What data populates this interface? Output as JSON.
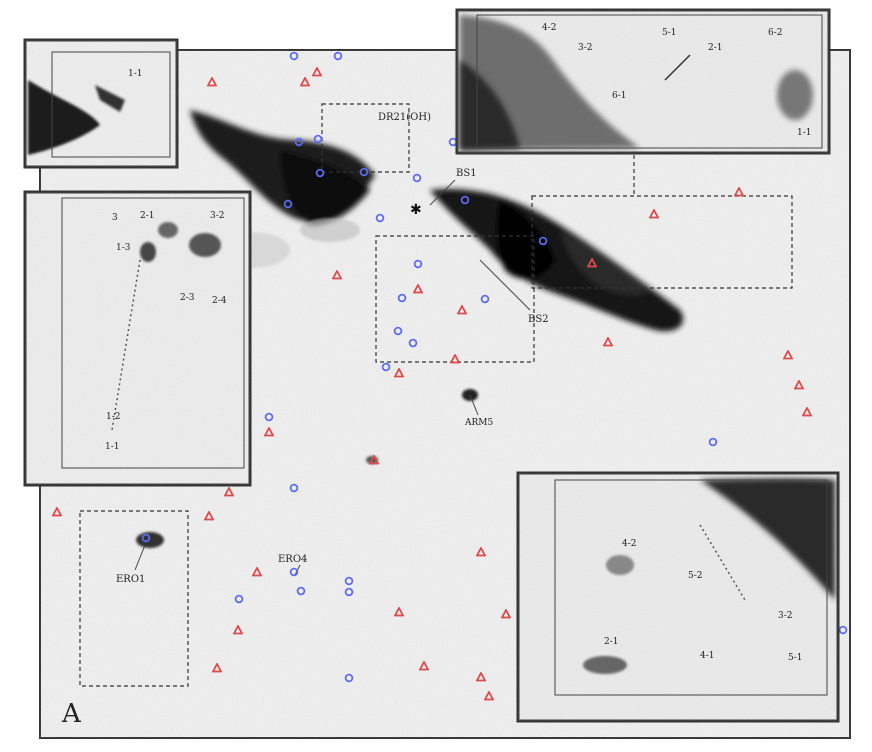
{
  "figure": {
    "panel_letter": "A",
    "labels": {
      "dr21": "DR21(OH)",
      "bs1": "BS1",
      "bs2": "BS2",
      "ero4": "ERO4",
      "ero1": "ERO1",
      "star_label": "ARM5"
    },
    "inset_top_left": {
      "labels": [
        "1-1"
      ]
    },
    "inset_top_right": {
      "labels": [
        "4-2",
        "3-2",
        "5-1",
        "2-1",
        "6-2",
        "6-1",
        "1-1"
      ]
    },
    "inset_left": {
      "labels": [
        "3",
        "2-1",
        "3-2",
        "1-3",
        "2-3",
        "2-4",
        "1-2",
        "1-1"
      ]
    },
    "inset_bottom_right": {
      "labels": [
        "4-2",
        "5-2",
        "3-2",
        "2-1",
        "4-1",
        "5-1"
      ]
    },
    "marker_colors": {
      "triangle": "#e0484a",
      "circle": "#5b6cf0"
    }
  }
}
